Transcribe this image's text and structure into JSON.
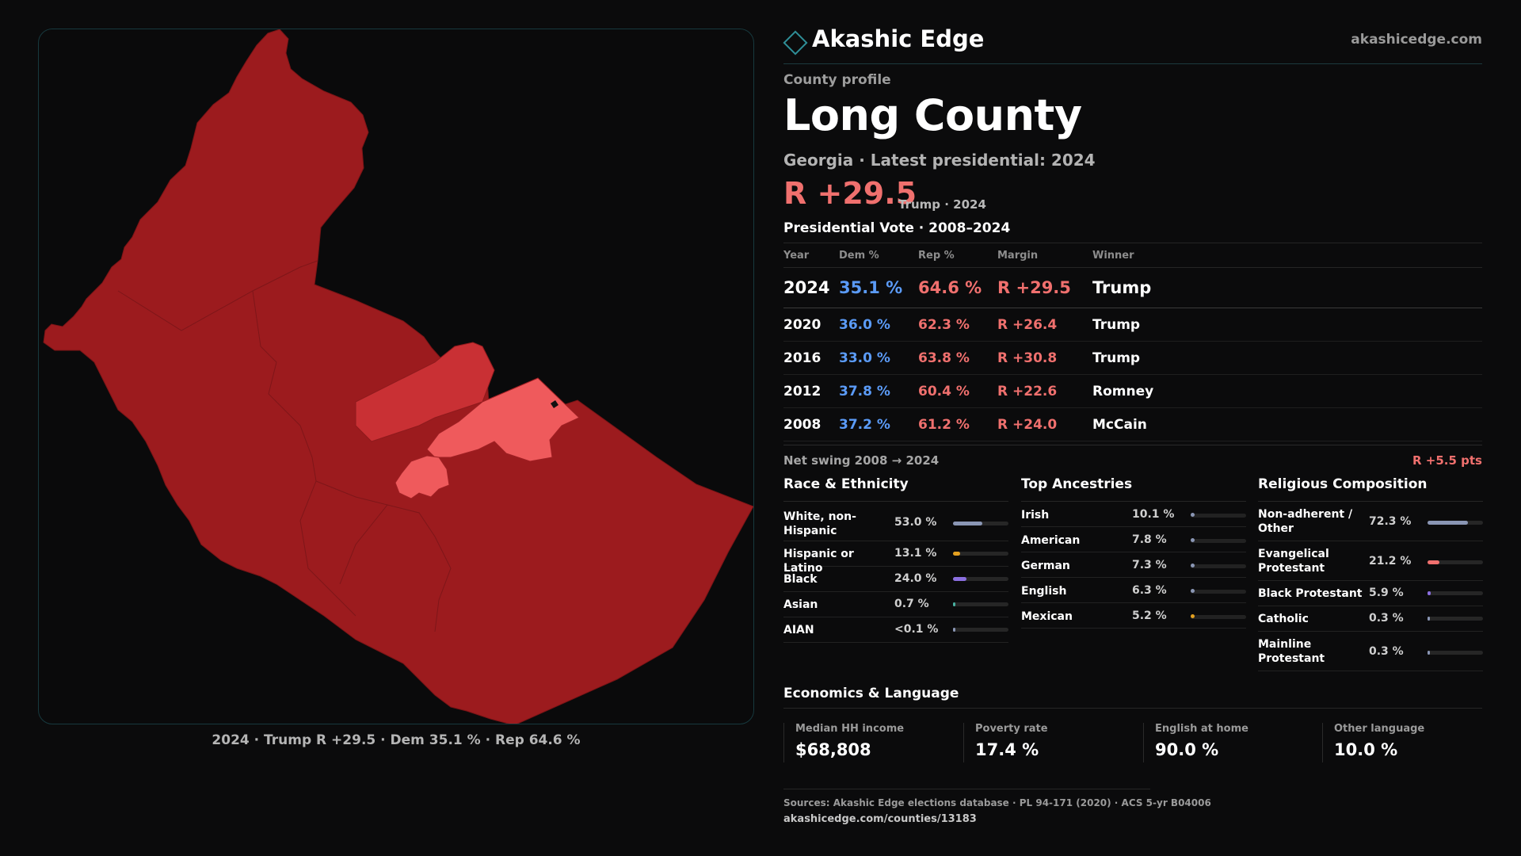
{
  "brand": {
    "name": "Akashic Edge",
    "site": "akashicedge.com"
  },
  "profile": {
    "kicker": "County profile",
    "title": "Long County",
    "subtitle": "Georgia · Latest presidential: 2024",
    "margin": "R +29.5",
    "margin_note": "Trump · 2024"
  },
  "map": {
    "caption": "2024 · Trump R +29.5 · Dem 35.1 % · Rep 64.6 %",
    "colors": {
      "dark": "#9c1b1e",
      "mid": "#c93034",
      "light": "#ef5a5c"
    }
  },
  "votes": {
    "title": "Presidential Vote · 2008–2024",
    "headers": [
      "Year",
      "Dem %",
      "Rep %",
      "Margin",
      "Winner"
    ],
    "rows": [
      {
        "year": "2024",
        "dem": "35.1 %",
        "rep": "64.6 %",
        "margin": "R +29.5",
        "winner": "Trump"
      },
      {
        "year": "2020",
        "dem": "36.0 %",
        "rep": "62.3 %",
        "margin": "R +26.4",
        "winner": "Trump"
      },
      {
        "year": "2016",
        "dem": "33.0 %",
        "rep": "63.8 %",
        "margin": "R +30.8",
        "winner": "Trump"
      },
      {
        "year": "2012",
        "dem": "37.8 %",
        "rep": "60.4 %",
        "margin": "R +22.6",
        "winner": "Romney"
      },
      {
        "year": "2008",
        "dem": "37.2 %",
        "rep": "61.2 %",
        "margin": "R +24.0",
        "winner": "McCain"
      }
    ],
    "swing_label": "Net swing 2008 → 2024",
    "swing_value": "R +5.5 pts"
  },
  "race": {
    "title": "Race & Ethnicity",
    "items": [
      {
        "label": "White, non-Hispanic",
        "value": "53.0 %",
        "pct": 53.0,
        "color": "#8a96b4"
      },
      {
        "label": "Hispanic or Latino",
        "value": "13.1 %",
        "pct": 13.1,
        "color": "#e3a020"
      },
      {
        "label": "Black",
        "value": "24.0 %",
        "pct": 24.0,
        "color": "#8b6fe0"
      },
      {
        "label": "Asian",
        "value": "0.7 %",
        "pct": 0.7,
        "color": "#48b0a0"
      },
      {
        "label": "AIAN",
        "value": "<0.1 %",
        "pct": 0.05,
        "color": "#8a96b4"
      }
    ]
  },
  "ancestry": {
    "title": "Top Ancestries",
    "items": [
      {
        "label": "Irish",
        "value": "10.1 %",
        "color": "#8a96b4"
      },
      {
        "label": "American",
        "value": "7.8 %",
        "color": "#8a96b4"
      },
      {
        "label": "German",
        "value": "7.3 %",
        "color": "#8a96b4"
      },
      {
        "label": "English",
        "value": "6.3 %",
        "color": "#8a96b4"
      },
      {
        "label": "Mexican",
        "value": "5.2 %",
        "color": "#e3a020"
      }
    ]
  },
  "religion": {
    "title": "Religious Composition",
    "items": [
      {
        "label": "Non-adherent / Other",
        "value": "72.3 %",
        "pct": 72.3,
        "color": "#8a96b4"
      },
      {
        "label": "Evangelical Protestant",
        "value": "21.2 %",
        "pct": 21.2,
        "color": "#f0706e"
      },
      {
        "label": "Black Protestant",
        "value": "5.9 %",
        "pct": 5.9,
        "color": "#8b6fe0"
      },
      {
        "label": "Catholic",
        "value": "0.3 %",
        "pct": 0.3,
        "color": "#8a96b4"
      },
      {
        "label": "Mainline Protestant",
        "value": "0.3 %",
        "pct": 0.3,
        "color": "#8a96b4"
      }
    ]
  },
  "economics": {
    "title": "Economics & Language",
    "cells": [
      {
        "label": "Median HH income",
        "value": "$68,808"
      },
      {
        "label": "Poverty rate",
        "value": "17.4 %"
      },
      {
        "label": "English at home",
        "value": "90.0 %"
      },
      {
        "label": "Other language",
        "value": "10.0 %"
      }
    ]
  },
  "sources": {
    "text": "Sources: Akashic Edge elections database · PL 94-171 (2020) · ACS 5-yr B04006",
    "url": "akashicedge.com/counties/13183"
  }
}
